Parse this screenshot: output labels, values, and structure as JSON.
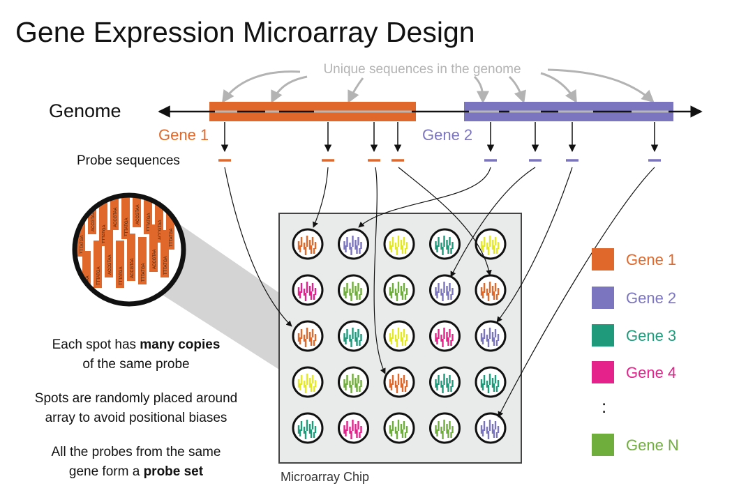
{
  "title": "Gene Expression Microarray Design",
  "genome_label": "Genome",
  "unique_label": "Unique sequences in the genome",
  "gene1_label": "Gene 1",
  "gene2_label": "Gene 2",
  "probe_label": "Probe sequences",
  "chip_label": "Microarray Chip",
  "colors": {
    "gene1": "#e0682a",
    "gene2": "#7b75c0",
    "gene3": "#1f9a7a",
    "gene4": "#e5218c",
    "geneN": "#6fae3c",
    "yellow": "#e3e827",
    "chip_bg": "#e9eaea",
    "grey_seg": "#b7b7b7"
  },
  "legend": [
    {
      "label": "Gene 1",
      "color": "#e0682a"
    },
    {
      "label": "Gene 2",
      "color": "#7b75c0"
    },
    {
      "label": "Gene 3",
      "color": "#1f9a7a"
    },
    {
      "label": "Gene 4",
      "color": "#e5218c"
    },
    {
      "label": "Gene N",
      "color": "#6fae3c"
    }
  ],
  "legend_ellipsis": ":",
  "grid_colors": [
    [
      "gene1",
      "gene2",
      "yellow",
      "gene3",
      "yellow"
    ],
    [
      "gene4",
      "geneN",
      "geneN",
      "gene2",
      "gene1"
    ],
    [
      "gene1",
      "gene3",
      "yellow",
      "gene4",
      "gene2"
    ],
    [
      "yellow",
      "geneN",
      "gene1",
      "gene3",
      "gene3"
    ],
    [
      "gene3",
      "gene4",
      "geneN",
      "geneN",
      "gene2"
    ]
  ],
  "probe_text": [
    "TTTATGA",
    "ACCGTAA"
  ],
  "caption1": {
    "pre": "Each spot has ",
    "bold": "many copies",
    "line2": "of the same probe"
  },
  "caption2": {
    "line1": "Spots are randomly placed around",
    "line2": "array to avoid positional biases"
  },
  "caption3": {
    "line1": "All the probes from the same",
    "pre": "gene form a ",
    "bold": "probe set"
  }
}
